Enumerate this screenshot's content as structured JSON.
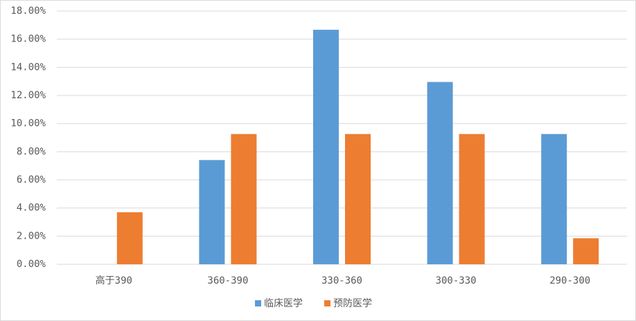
{
  "chart_data": {
    "type": "bar",
    "categories": [
      "高于390",
      "360-390",
      "330-360",
      "300-330",
      "290-300"
    ],
    "series": [
      {
        "name": "临床医学",
        "color": "#5b9bd5",
        "values": [
          0,
          7.41,
          16.67,
          12.96,
          9.26
        ]
      },
      {
        "name": "预防医学",
        "color": "#ed7d31",
        "values": [
          3.7,
          9.26,
          9.26,
          9.26,
          1.85
        ]
      }
    ],
    "ylim": [
      0,
      18
    ],
    "yticks": [
      {
        "value": 0,
        "label": "0.00%"
      },
      {
        "value": 2,
        "label": "2.00%"
      },
      {
        "value": 4,
        "label": "4.00%"
      },
      {
        "value": 6,
        "label": "6.00%"
      },
      {
        "value": 8,
        "label": "8.00%"
      },
      {
        "value": 10,
        "label": "10.00%"
      },
      {
        "value": 12,
        "label": "12.00%"
      },
      {
        "value": 14,
        "label": "14.00%"
      },
      {
        "value": 16,
        "label": "16.00%"
      },
      {
        "value": 18,
        "label": "18.00%"
      }
    ],
    "grid": true,
    "legend": "bottom"
  }
}
